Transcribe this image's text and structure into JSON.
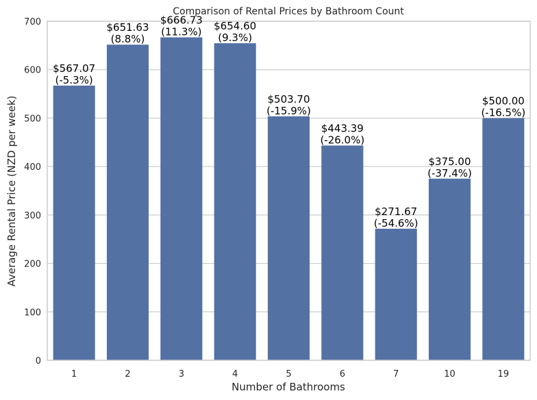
{
  "chart_data": {
    "type": "bar",
    "title": "Comparison of Rental Prices by Bathroom Count",
    "xlabel": "Number of Bathrooms",
    "ylabel": "Average Rental Price (NZD per week)",
    "categories": [
      "1",
      "2",
      "3",
      "4",
      "5",
      "6",
      "7",
      "10",
      "19"
    ],
    "values": [
      567.07,
      651.63,
      666.73,
      654.6,
      503.7,
      443.39,
      271.67,
      375.0,
      500.0
    ],
    "value_labels": [
      "$567.07",
      "$651.63",
      "$666.73",
      "$654.60",
      "$503.70",
      "$443.39",
      "$271.67",
      "$375.00",
      "$500.00"
    ],
    "pct_labels": [
      "(-5.3%)",
      "(8.8%)",
      "(11.3%)",
      "(9.3%)",
      "(-15.9%)",
      "(-26.0%)",
      "(-54.6%)",
      "(-37.4%)",
      "(-16.5%)"
    ],
    "ylim": [
      0,
      700
    ],
    "yticks": [
      0,
      100,
      200,
      300,
      400,
      500,
      600,
      700
    ],
    "grid": true,
    "bar_color": "#5471a4",
    "grid_color": "#cccccc",
    "spine_color": "#cccccc"
  }
}
